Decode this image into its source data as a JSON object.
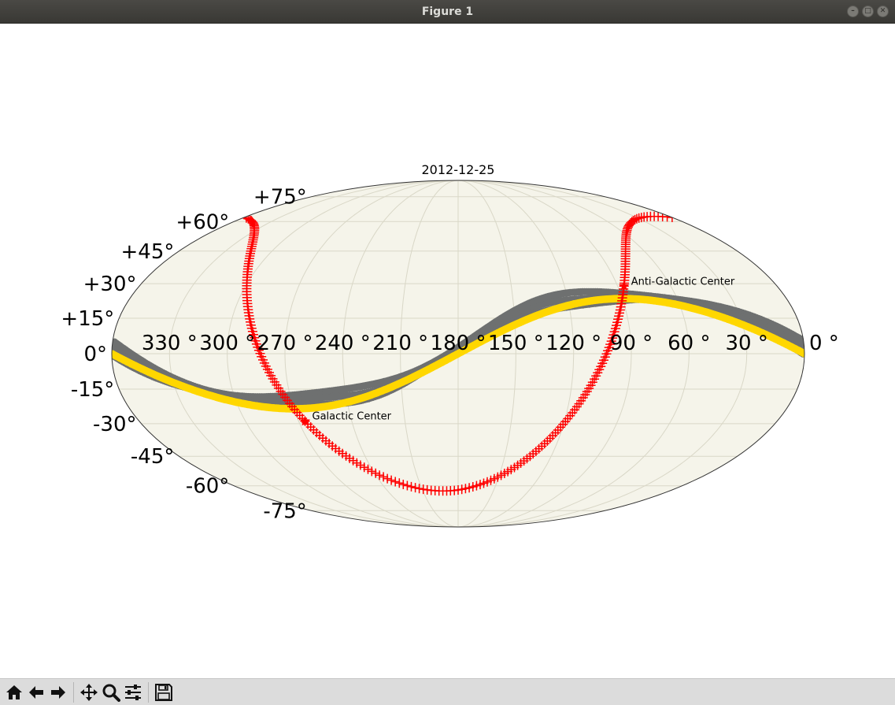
{
  "window": {
    "title": "Figure 1"
  },
  "toolbar": {
    "buttons": [
      {
        "name": "home-button",
        "icon": "home-icon"
      },
      {
        "name": "back-button",
        "icon": "arrow-left-icon"
      },
      {
        "name": "forward-button",
        "icon": "arrow-right-icon"
      },
      {
        "name": "pan-button",
        "icon": "move-icon"
      },
      {
        "name": "zoom-button",
        "icon": "magnifier-icon"
      },
      {
        "name": "configure-subplots-button",
        "icon": "sliders-icon"
      },
      {
        "name": "save-button",
        "icon": "floppy-disk-icon"
      }
    ]
  },
  "chart_data": {
    "type": "scatter",
    "projection": "mollweide",
    "title": "2012-12-25",
    "lon_ticks": [
      "330 °",
      "300 °",
      "270 °",
      "240 °",
      "210 °",
      "180 °",
      "150 °",
      "120 °",
      "90 °",
      "60 °",
      "30 °",
      "0 °"
    ],
    "lat_ticks": [
      "+75°",
      "+60°",
      "+45°",
      "+30°",
      "+15°",
      "0°",
      "-15°",
      "-30°",
      "-45°",
      "-60°",
      "-75°"
    ],
    "grid": true,
    "annotations": [
      {
        "text": "Galactic Center",
        "ra": 266.4,
        "dec": -28.9
      },
      {
        "text": "Anti-Galactic Center",
        "ra": 86.4,
        "dec": 28.9
      }
    ],
    "colors": {
      "background": "#f5f4ea",
      "grid": "#d9d7c7",
      "galactic_plane": "#ff0000",
      "ecliptic": "#ffd700",
      "gray_track": "#6e7070"
    }
  }
}
